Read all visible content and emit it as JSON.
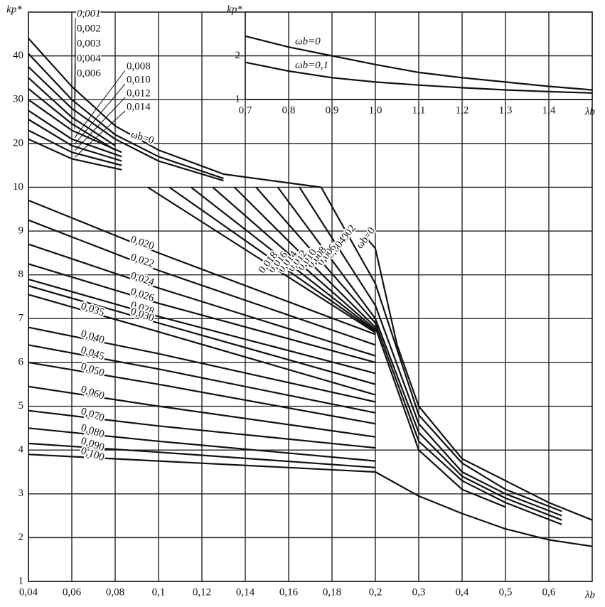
{
  "chart_data": [
    {
      "type": "line",
      "y_label": "kp*",
      "x_label": "λb",
      "scale": "uniform-between-ticks",
      "xlim": [
        0.04,
        0.7
      ],
      "xticks": [
        {
          "value": 0.04,
          "label": "0,04"
        },
        {
          "value": 0.06,
          "label": "0,06"
        },
        {
          "value": 0.08,
          "label": "0,08"
        },
        {
          "value": 0.1,
          "label": "0,1"
        },
        {
          "value": 0.12,
          "label": "0,12"
        },
        {
          "value": 0.14,
          "label": "0,14"
        },
        {
          "value": 0.16,
          "label": "0,16"
        },
        {
          "value": 0.18,
          "label": "0,18"
        },
        {
          "value": 0.2,
          "label": "0,2"
        },
        {
          "value": 0.3,
          "label": "0,3"
        },
        {
          "value": 0.4,
          "label": "0,4"
        },
        {
          "value": 0.5,
          "label": "0,5"
        },
        {
          "value": 0.6,
          "label": "0,6"
        }
      ],
      "ylim": [
        1,
        50
      ],
      "yticks": [
        1,
        2,
        3,
        4,
        5,
        6,
        7,
        8,
        9,
        10,
        20,
        30,
        40
      ],
      "grid": true,
      "color": "#111111",
      "series": [
        {
          "name": "ωb=0",
          "x": [
            0.04,
            0.06,
            0.08,
            0.1,
            0.13,
            0.175
          ],
          "values": [
            44,
            33,
            24,
            18.5,
            13,
            10
          ]
        },
        {
          "name": "0,001",
          "x": [
            0.04,
            0.06,
            0.08,
            0.1,
            0.13
          ],
          "values": [
            40.5,
            30,
            22,
            17,
            12
          ]
        },
        {
          "name": "0,002",
          "x": [
            0.04,
            0.06,
            0.08,
            0.1,
            0.13
          ],
          "values": [
            37.5,
            28,
            21,
            16,
            11.5
          ]
        },
        {
          "name": "0,003",
          "x": [
            0.04,
            0.06,
            0.08
          ],
          "values": [
            35,
            26,
            19.5
          ]
        },
        {
          "name": "0,004",
          "x": [
            0.04,
            0.06,
            0.08
          ],
          "values": [
            32.5,
            24.5,
            18.5
          ]
        },
        {
          "name": "0,006",
          "x": [
            0.04,
            0.06,
            0.083
          ],
          "values": [
            30,
            23,
            18
          ]
        },
        {
          "name": "0,008",
          "x": [
            0.04,
            0.06,
            0.083
          ],
          "values": [
            27.5,
            21,
            17
          ]
        },
        {
          "name": "0,010",
          "x": [
            0.04,
            0.06,
            0.083
          ],
          "values": [
            25.5,
            19.5,
            16
          ]
        },
        {
          "name": "0,012",
          "x": [
            0.04,
            0.06,
            0.083
          ],
          "values": [
            23,
            18,
            15
          ]
        },
        {
          "name": "0,014",
          "x": [
            0.04,
            0.06,
            0.083
          ],
          "values": [
            21,
            16.5,
            14
          ]
        },
        {
          "name": "0,020",
          "x": [
            0.04,
            0.1,
            0.2
          ],
          "values": [
            9.7,
            8.5,
            6.64
          ]
        },
        {
          "name": "0,022",
          "x": [
            0.04,
            0.1,
            0.2
          ],
          "values": [
            9.25,
            8.1,
            6.4
          ]
        },
        {
          "name": "0,024",
          "x": [
            0.04,
            0.1,
            0.2
          ],
          "values": [
            8.7,
            7.7,
            6.15
          ]
        },
        {
          "name": "0,026",
          "x": [
            0.04,
            0.1,
            0.2
          ],
          "values": [
            8.25,
            7.35,
            6.0
          ]
        },
        {
          "name": "0,028",
          "x": [
            0.04,
            0.1,
            0.2
          ],
          "values": [
            7.9,
            7.05,
            5.75
          ]
        },
        {
          "name": "0,030",
          "x": [
            0.04,
            0.1,
            0.2
          ],
          "values": [
            7.75,
            6.9,
            5.5
          ]
        },
        {
          "name": "0,035",
          "x": [
            0.04,
            0.1,
            0.2
          ],
          "values": [
            7.55,
            6.7,
            5.26
          ]
        },
        {
          "name": "0,040",
          "x": [
            0.04,
            0.1,
            0.2
          ],
          "values": [
            6.8,
            6.2,
            5.1
          ]
        },
        {
          "name": "0,045",
          "x": [
            0.04,
            0.1,
            0.2
          ],
          "values": [
            6.4,
            5.85,
            4.85
          ]
        },
        {
          "name": "0,050",
          "x": [
            0.04,
            0.1,
            0.2
          ],
          "values": [
            6.0,
            5.5,
            4.6
          ]
        },
        {
          "name": "0,060",
          "x": [
            0.04,
            0.1,
            0.2
          ],
          "values": [
            5.45,
            5.0,
            4.3
          ]
        },
        {
          "name": "0,070",
          "x": [
            0.04,
            0.1,
            0.2
          ],
          "values": [
            4.9,
            4.55,
            4.05
          ]
        },
        {
          "name": "0,080",
          "x": [
            0.04,
            0.1,
            0.2
          ],
          "values": [
            4.5,
            4.2,
            3.75
          ]
        },
        {
          "name": "0,090",
          "x": [
            0.04,
            0.1,
            0.2
          ],
          "values": [
            4.15,
            3.95,
            3.6
          ]
        },
        {
          "name": "0,100",
          "x": [
            0.04,
            0.1,
            0.2,
            0.3,
            0.4,
            0.5,
            0.6,
            0.7
          ],
          "values": [
            3.9,
            3.75,
            3.5,
            2.95,
            2.55,
            2.2,
            1.95,
            1.8
          ]
        },
        {
          "name": "ωb=0",
          "x": [
            0.195,
            0.2,
            0.25,
            0.3,
            0.4,
            0.5,
            0.6,
            0.7
          ],
          "values": [
            8.9,
            8.6,
            6.4,
            5.0,
            3.8,
            3.3,
            2.8,
            2.4
          ]
        },
        {
          "name": "0,002",
          "x": [
            0.175,
            0.2,
            0.3,
            0.4,
            0.5,
            0.63
          ],
          "values": [
            10,
            7.8,
            4.8,
            3.7,
            3.1,
            2.6
          ]
        },
        {
          "name": "0,004",
          "x": [
            0.165,
            0.2,
            0.3,
            0.4,
            0.5,
            0.63
          ],
          "values": [
            10,
            7.3,
            4.6,
            3.5,
            3.0,
            2.5
          ]
        },
        {
          "name": "0,006",
          "x": [
            0.155,
            0.2,
            0.3,
            0.4,
            0.5,
            0.63
          ],
          "values": [
            10,
            7.0,
            4.4,
            3.4,
            2.9,
            2.4
          ]
        },
        {
          "name": "0,008",
          "x": [
            0.145,
            0.2,
            0.3,
            0.4,
            0.5,
            0.63
          ],
          "values": [
            10,
            6.9,
            4.2,
            3.3,
            2.8,
            2.3
          ]
        },
        {
          "name": "0,010",
          "x": [
            0.135,
            0.2,
            0.3,
            0.4,
            0.5
          ],
          "values": [
            10,
            6.8,
            4.0,
            3.1,
            2.7
          ]
        },
        {
          "name": "0,012",
          "x": [
            0.125,
            0.2
          ],
          "values": [
            10,
            6.75
          ]
        },
        {
          "name": "0,014",
          "x": [
            0.115,
            0.2
          ],
          "values": [
            10,
            6.72
          ]
        },
        {
          "name": "0,016",
          "x": [
            0.105,
            0.2
          ],
          "values": [
            10,
            6.7
          ]
        },
        {
          "name": "0,018",
          "x": [
            0.095,
            0.2
          ],
          "values": [
            10,
            6.68
          ]
        }
      ]
    },
    {
      "type": "line",
      "y_label": "kp*",
      "x_label": "λb",
      "scale": "uniform-between-ticks",
      "xlim": [
        0.7,
        1.5
      ],
      "xticks": [
        {
          "value": 0.7,
          "label": "0,7"
        },
        {
          "value": 0.8,
          "label": "0,8"
        },
        {
          "value": 0.9,
          "label": "0,9"
        },
        {
          "value": 1.0,
          "label": "1,0"
        },
        {
          "value": 1.1,
          "label": "1,1"
        },
        {
          "value": 1.2,
          "label": "1,2"
        },
        {
          "value": 1.3,
          "label": "1,3"
        },
        {
          "value": 1.4,
          "label": "1,4"
        }
      ],
      "ylim": [
        1,
        3
      ],
      "yticks": [
        1,
        2
      ],
      "grid": true,
      "color": "#111111",
      "series": [
        {
          "name": "ωb=0",
          "x": [
            0.7,
            0.8,
            0.9,
            1.0,
            1.1,
            1.2,
            1.3,
            1.4,
            1.5
          ],
          "values": [
            2.45,
            2.2,
            2.0,
            1.8,
            1.62,
            1.5,
            1.4,
            1.3,
            1.22
          ]
        },
        {
          "name": "ωb=0,1",
          "x": [
            0.7,
            0.8,
            0.9,
            1.0,
            1.1,
            1.2,
            1.3,
            1.4,
            1.5
          ],
          "values": [
            1.85,
            1.65,
            1.5,
            1.4,
            1.33,
            1.27,
            1.22,
            1.18,
            1.15
          ]
        }
      ]
    }
  ]
}
